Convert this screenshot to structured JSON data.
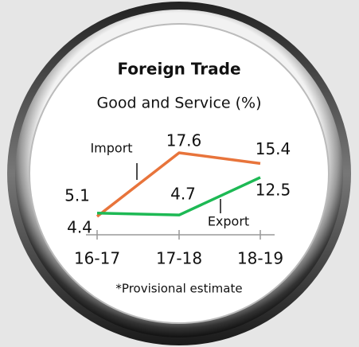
{
  "chart_data": {
    "type": "line",
    "title": "Foreign Trade",
    "subtitle": "Good and Service (%)",
    "categories": [
      "16-17",
      "17-18",
      "18-19"
    ],
    "series": [
      {
        "name": "Import",
        "color": "#e8743b",
        "values": [
          4.4,
          17.6,
          15.4
        ]
      },
      {
        "name": "Export",
        "color": "#1db954",
        "values": [
          5.1,
          4.7,
          12.5
        ]
      }
    ],
    "annotation": "*Provisional estimate"
  }
}
